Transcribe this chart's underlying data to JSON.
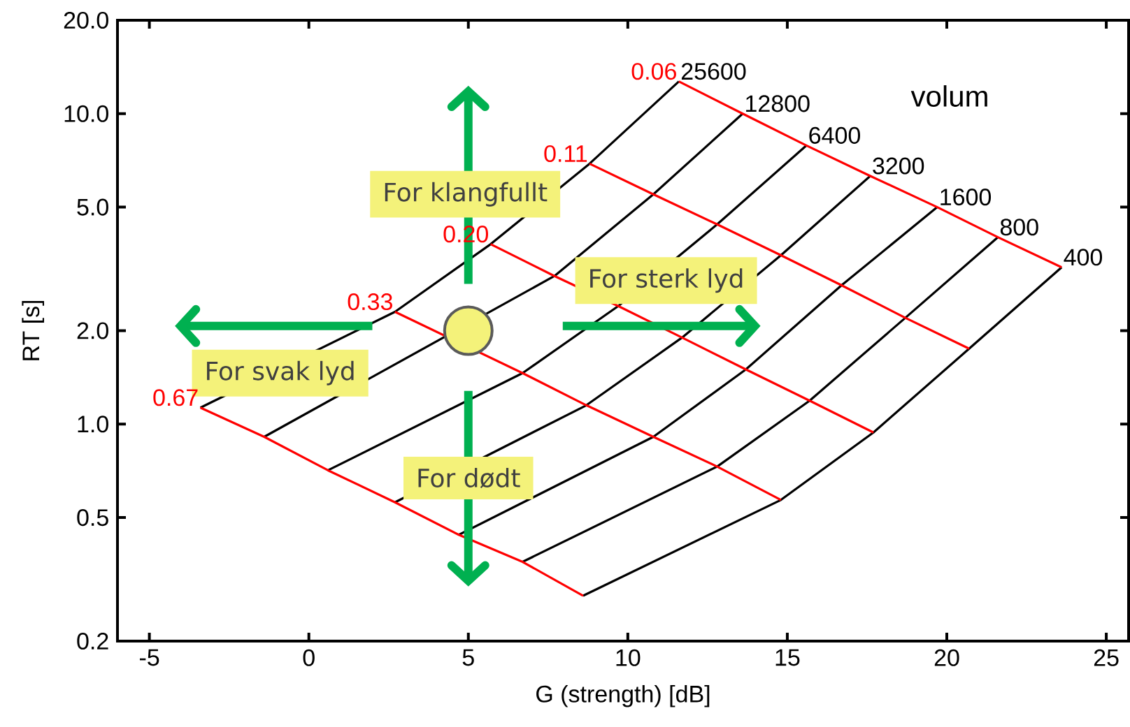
{
  "chart_data": {
    "type": "line",
    "xlabel": "G (strength) [dB]",
    "ylabel": "RT  [s]",
    "xlim": [
      -6,
      25.7
    ],
    "ylim": [
      0.2,
      20
    ],
    "log": "y",
    "xticks": [
      -5,
      0,
      5,
      10,
      15,
      20,
      25
    ],
    "yticks": [
      {
        "value": 0.2,
        "label": "0.2"
      },
      {
        "value": 0.5,
        "label": "0.5"
      },
      {
        "value": 1,
        "label": "1.0"
      },
      {
        "value": 2,
        "label": "2.0"
      },
      {
        "value": 5,
        "label": "5.0"
      },
      {
        "value": 10,
        "label": "10.0"
      },
      {
        "value": 20,
        "label": "20.0"
      }
    ],
    "series": [
      {
        "name": "25600",
        "color": "#000000",
        "x": [
          11.6,
          8.8,
          5.7,
          2.7,
          -3.4
        ],
        "values": [
          12.7,
          6.9,
          3.8,
          2.3,
          1.13
        ]
      },
      {
        "name": "12800",
        "color": "#000000",
        "x": [
          13.6,
          10.8,
          7.7,
          4.7,
          -1.4
        ],
        "values": [
          10.0,
          5.5,
          3.0,
          null,
          0.91
        ]
      },
      {
        "name": "6400",
        "color": "#000000",
        "x": [
          15.6,
          12.8,
          9.7,
          6.7,
          0.6
        ],
        "values": [
          7.9,
          4.4,
          2.4,
          1.46,
          0.71
        ]
      },
      {
        "name": "3200",
        "color": "#000000",
        "x": [
          17.6,
          14.8,
          11.7,
          8.7,
          2.7
        ],
        "values": [
          6.3,
          3.5,
          1.9,
          1.15,
          0.56
        ]
      },
      {
        "name": "1600",
        "color": "#000000",
        "x": [
          19.7,
          16.7,
          13.7,
          10.8,
          4.7
        ],
        "values": [
          5.0,
          2.8,
          1.5,
          0.91,
          0.44
        ]
      },
      {
        "name": "800",
        "color": "#000000",
        "x": [
          21.6,
          18.7,
          15.7,
          12.8,
          6.7
        ],
        "values": [
          4.0,
          2.2,
          1.19,
          0.73,
          0.36
        ]
      },
      {
        "name": "400",
        "color": "#000000",
        "x": [
          23.6,
          20.7,
          17.7,
          14.8,
          8.6
        ],
        "values": [
          3.2,
          1.75,
          0.94,
          0.57,
          0.28
        ]
      },
      {
        "name": "0.06",
        "color": "#ff0000",
        "x": [
          11.6,
          13.6,
          15.6,
          17.6,
          19.7,
          21.6,
          23.6
        ],
        "values": [
          12.7,
          10.0,
          7.9,
          6.3,
          5.0,
          4.0,
          3.2
        ]
      },
      {
        "name": "0.11",
        "color": "#ff0000",
        "x": [
          8.8,
          10.8,
          12.8,
          14.8,
          16.7,
          18.7,
          20.7
        ],
        "values": [
          6.9,
          5.5,
          4.4,
          3.5,
          2.8,
          2.2,
          1.75
        ]
      },
      {
        "name": "0.20",
        "color": "#ff0000",
        "x": [
          5.7,
          7.7,
          9.7,
          11.7,
          13.7,
          15.7,
          17.7
        ],
        "values": [
          3.8,
          3.0,
          2.4,
          1.9,
          1.5,
          1.19,
          0.94
        ]
      },
      {
        "name": "0.33",
        "color": "#ff0000",
        "x": [
          2.7,
          4.7,
          6.7,
          8.7,
          10.8,
          12.8,
          14.8
        ],
        "values": [
          2.3,
          null,
          1.46,
          1.15,
          0.91,
          0.73,
          0.57
        ]
      },
      {
        "name": "0.67",
        "color": "#ff0000",
        "x": [
          -3.4,
          -1.4,
          0.6,
          2.7,
          4.7,
          6.7,
          8.6
        ],
        "values": [
          1.13,
          0.91,
          0.71,
          0.56,
          0.44,
          0.36,
          0.28
        ]
      },
      {
        "type": "scatter",
        "color": "#f4f27a",
        "x": [
          5
        ],
        "values": [
          2
        ]
      }
    ],
    "annotations": [
      "volum",
      "For klangfullt",
      "For sterk lyd",
      "For svak lyd",
      "For dødt"
    ]
  }
}
